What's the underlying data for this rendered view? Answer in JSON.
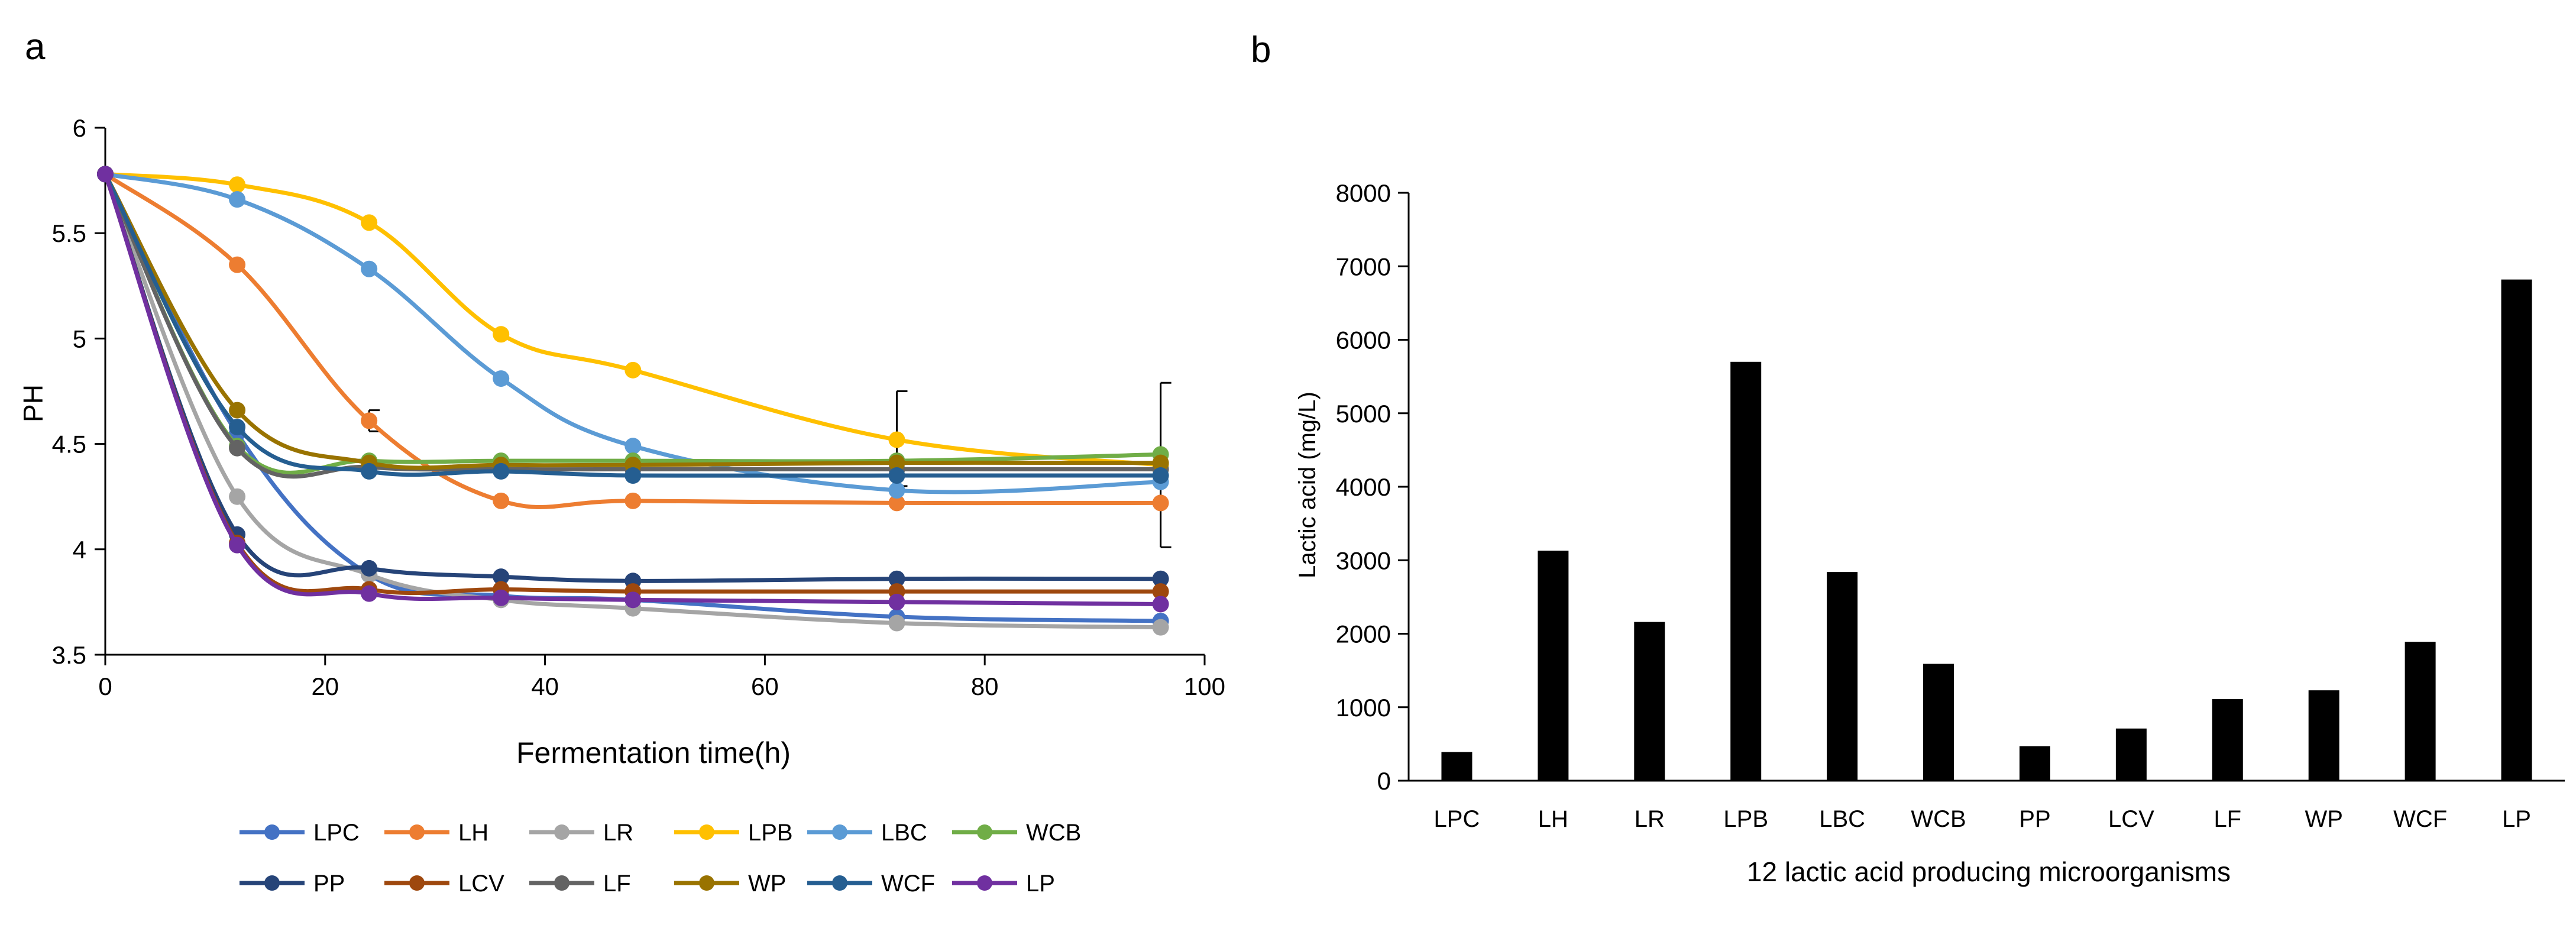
{
  "panels": {
    "a": "a",
    "b": "b"
  },
  "chart_data": [
    {
      "type": "line",
      "panel": "a",
      "xlabel": "Fermentation time(h)",
      "ylabel": "PH",
      "xlim": [
        0,
        100
      ],
      "ylim": [
        3.5,
        6
      ],
      "xticks": [
        0,
        20,
        40,
        60,
        80,
        100
      ],
      "yticks": [
        3.5,
        4,
        4.5,
        5,
        5.5,
        6
      ],
      "grid": false,
      "legend": "bottom",
      "x": [
        0,
        12,
        24,
        36,
        48,
        72,
        96
      ],
      "series": [
        {
          "name": "LPC",
          "color": "#4472C4",
          "values": [
            5.78,
            4.55,
            3.88,
            3.78,
            3.76,
            3.68,
            3.66
          ]
        },
        {
          "name": "LH",
          "color": "#ED7D31",
          "values": [
            5.78,
            5.35,
            4.61,
            4.23,
            4.23,
            4.22,
            4.22
          ]
        },
        {
          "name": "LR",
          "color": "#A5A5A5",
          "values": [
            5.78,
            4.25,
            3.88,
            3.76,
            3.72,
            3.65,
            3.63
          ]
        },
        {
          "name": "LPB",
          "color": "#FFC000",
          "values": [
            5.78,
            5.73,
            5.55,
            5.02,
            4.85,
            4.52,
            4.4
          ]
        },
        {
          "name": "LBC",
          "color": "#5B9BD5",
          "values": [
            5.78,
            5.66,
            5.33,
            4.81,
            4.49,
            4.28,
            4.32
          ]
        },
        {
          "name": "WCB",
          "color": "#70AD47",
          "values": [
            5.78,
            4.49,
            4.42,
            4.42,
            4.42,
            4.42,
            4.45
          ]
        },
        {
          "name": "PP",
          "color": "#264478",
          "values": [
            5.78,
            4.07,
            3.91,
            3.87,
            3.85,
            3.86,
            3.86
          ]
        },
        {
          "name": "LCV",
          "color": "#9E480E",
          "values": [
            5.78,
            4.03,
            3.81,
            3.81,
            3.8,
            3.8,
            3.8
          ]
        },
        {
          "name": "LF",
          "color": "#636363",
          "values": [
            5.78,
            4.48,
            4.39,
            4.38,
            4.38,
            4.38,
            4.38
          ]
        },
        {
          "name": "WP",
          "color": "#997300",
          "values": [
            5.78,
            4.66,
            4.41,
            4.4,
            4.4,
            4.41,
            4.41
          ]
        },
        {
          "name": "WCF",
          "color": "#255E91",
          "values": [
            5.78,
            4.58,
            4.37,
            4.37,
            4.35,
            4.35,
            4.35
          ]
        },
        {
          "name": "LP",
          "color": "#7030A0",
          "values": [
            5.78,
            4.02,
            3.79,
            3.77,
            3.76,
            3.75,
            3.74
          ]
        }
      ],
      "error_bars": [
        {
          "x": 24,
          "low": 4.56,
          "high": 4.66
        },
        {
          "x": 72,
          "low": 4.3,
          "high": 4.75
        },
        {
          "x": 96,
          "low": 4.01,
          "high": 4.79
        }
      ]
    },
    {
      "type": "bar",
      "panel": "b",
      "xlabel": "12 lactic acid producing microorganisms",
      "ylabel": "Lactic acid (mg/L)",
      "ylim": [
        0,
        8000
      ],
      "yticks": [
        0,
        1000,
        2000,
        3000,
        4000,
        5000,
        6000,
        7000,
        8000
      ],
      "grid": false,
      "color": "#000000",
      "categories": [
        "LPC",
        "LH",
        "LR",
        "LPB",
        "LBC",
        "WCB",
        "PP",
        "LCV",
        "LF",
        "WP",
        "WCF",
        "LP"
      ],
      "values": [
        390,
        3130,
        2160,
        5700,
        2840,
        1590,
        470,
        710,
        1110,
        1230,
        1890,
        6820
      ]
    }
  ]
}
